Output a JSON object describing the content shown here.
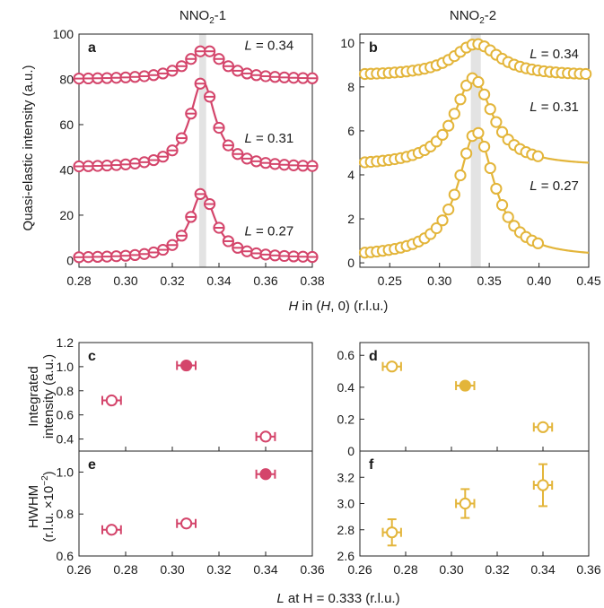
{
  "colors": {
    "red": "#d4456b",
    "gold": "#e3b53a",
    "band": "#e3e3e3",
    "axis": "#222222"
  },
  "figure": {
    "title_left": "NNO",
    "title_left_sub": "2",
    "title_left_suffix": "-1",
    "title_right": "NNO",
    "title_right_sub": "2",
    "title_right_suffix": "-2",
    "top_xlabel_pre": "H",
    "top_xlabel_post": " in (",
    "top_xlabel_H": "H",
    "top_xlabel_end": ", 0) (r.l.u.)",
    "top_ylabel": "Quasi-elastic intensity (a.u.)",
    "bottom_xlabel_L": "L",
    "bottom_xlabel_rest": " at H = 0.333 (r.l.u.)",
    "mid_ylabel_1": "Integrated",
    "mid_ylabel_2": "intensity (a.u.)",
    "bot_ylabel_1": "HWHM",
    "bot_ylabel_2": "(r.l.u. ×10",
    "bot_ylabel_sup": "−2",
    "bot_ylabel_end": ")"
  },
  "chart_data": [
    {
      "panel": "a",
      "type": "line+scatter",
      "color": "red",
      "xlim": [
        0.28,
        0.38
      ],
      "ylim": [
        -3,
        100
      ],
      "xticks": [
        "0.28",
        "0.30",
        "0.32",
        "0.34",
        "0.36",
        "0.38"
      ],
      "yticks": [
        0,
        20,
        40,
        60,
        80,
        100
      ],
      "band": [
        0.3315,
        0.3345
      ],
      "curves": [
        {
          "label_L": "L",
          "label_val": " = 0.34",
          "label_pos": [
            0.372,
            93
          ],
          "baseline": 80,
          "amp": 13,
          "center": 0.334,
          "gamma": 0.009,
          "points_x": [
            0.28,
            0.284,
            0.288,
            0.292,
            0.296,
            0.3,
            0.304,
            0.308,
            0.312,
            0.316,
            0.32,
            0.324,
            0.328,
            0.332,
            0.336,
            0.34,
            0.344,
            0.348,
            0.352,
            0.356,
            0.36,
            0.364,
            0.368,
            0.372,
            0.376,
            0.38
          ],
          "open": true
        },
        {
          "label_L": "L",
          "label_val": " = 0.31",
          "label_pos": [
            0.372,
            52
          ],
          "baseline": 41,
          "amp": 38,
          "center": 0.333,
          "gamma": 0.0065,
          "points_x": [
            0.28,
            0.284,
            0.288,
            0.292,
            0.296,
            0.3,
            0.304,
            0.308,
            0.312,
            0.316,
            0.32,
            0.324,
            0.328,
            0.332,
            0.336,
            0.34,
            0.344,
            0.348,
            0.352,
            0.356,
            0.36,
            0.364,
            0.368,
            0.372,
            0.376,
            0.38
          ],
          "open": true
        },
        {
          "label_L": "L",
          "label_val": " = 0.27",
          "label_pos": [
            0.372,
            11
          ],
          "baseline": 1,
          "amp": 29,
          "center": 0.333,
          "gamma": 0.0065,
          "points_x": [
            0.28,
            0.284,
            0.288,
            0.292,
            0.296,
            0.3,
            0.304,
            0.308,
            0.312,
            0.316,
            0.32,
            0.324,
            0.328,
            0.332,
            0.336,
            0.34,
            0.344,
            0.348,
            0.352,
            0.356,
            0.36,
            0.364,
            0.368,
            0.372,
            0.376,
            0.38
          ],
          "open": true
        }
      ]
    },
    {
      "panel": "b",
      "type": "line+scatter",
      "color": "gold",
      "xlim": [
        0.22,
        0.45
      ],
      "ylim": [
        -0.2,
        10.4
      ],
      "xticks": [
        "0.25",
        "0.30",
        "0.35",
        "0.40",
        "0.45"
      ],
      "yticks": [
        0,
        2,
        4,
        6,
        8,
        10
      ],
      "band": [
        0.3315,
        0.3415
      ],
      "curves": [
        {
          "label_L": "L",
          "label_val": " = 0.34",
          "label_pos": [
            0.44,
            9.3
          ],
          "baseline": 8.5,
          "amp": 1.45,
          "center": 0.337,
          "gamma": 0.028,
          "points_x": [
            0.225,
            0.231,
            0.237,
            0.243,
            0.249,
            0.255,
            0.261,
            0.267,
            0.273,
            0.279,
            0.285,
            0.291,
            0.297,
            0.303,
            0.309,
            0.315,
            0.321,
            0.327,
            0.333,
            0.339,
            0.345,
            0.351,
            0.357,
            0.363,
            0.369,
            0.375,
            0.381,
            0.387,
            0.393,
            0.399,
            0.405,
            0.411,
            0.417,
            0.423,
            0.429,
            0.435,
            0.441,
            0.447
          ],
          "open": true
        },
        {
          "label_L": "L",
          "label_val": " = 0.31",
          "label_pos": [
            0.44,
            6.9
          ],
          "baseline": 4.4,
          "amp": 4.0,
          "center": 0.334,
          "gamma": 0.023,
          "points_x": [
            0.225,
            0.231,
            0.237,
            0.243,
            0.249,
            0.255,
            0.261,
            0.267,
            0.273,
            0.279,
            0.285,
            0.291,
            0.297,
            0.303,
            0.309,
            0.315,
            0.321,
            0.327,
            0.333,
            0.339,
            0.345,
            0.351,
            0.357,
            0.363,
            0.369,
            0.375,
            0.381,
            0.387,
            0.393,
            0.399
          ],
          "open": true
        },
        {
          "label_L": "L",
          "label_val": " = 0.27",
          "label_pos": [
            0.44,
            3.3
          ],
          "baseline": 0.25,
          "amp": 5.7,
          "center": 0.337,
          "gamma": 0.022,
          "points_x": [
            0.225,
            0.231,
            0.237,
            0.243,
            0.249,
            0.255,
            0.261,
            0.267,
            0.273,
            0.279,
            0.285,
            0.291,
            0.297,
            0.303,
            0.309,
            0.315,
            0.321,
            0.327,
            0.333,
            0.339,
            0.345,
            0.351,
            0.357,
            0.363,
            0.369,
            0.375,
            0.381,
            0.387,
            0.393,
            0.399
          ],
          "open": true
        }
      ]
    },
    {
      "panel": "c",
      "type": "scatter",
      "color": "red",
      "xlim": [
        0.26,
        0.36
      ],
      "ylim": [
        0.3,
        1.2
      ],
      "yticks": [
        "0.4",
        "0.6",
        "0.8",
        "1.0",
        "1.2"
      ],
      "points": [
        {
          "x": 0.274,
          "y": 0.72,
          "xerr": 0.004,
          "yerr": 0.0,
          "filled": false
        },
        {
          "x": 0.306,
          "y": 1.01,
          "xerr": 0.004,
          "yerr": 0.0,
          "filled": true
        },
        {
          "x": 0.34,
          "y": 0.42,
          "xerr": 0.004,
          "yerr": 0.0,
          "filled": false
        }
      ]
    },
    {
      "panel": "d",
      "type": "scatter",
      "color": "gold",
      "xlim": [
        0.26,
        0.36
      ],
      "ylim": [
        0.0,
        0.68
      ],
      "yticks": [
        "0",
        "0.2",
        "0.4",
        "0.6"
      ],
      "points": [
        {
          "x": 0.274,
          "y": 0.53,
          "xerr": 0.004,
          "yerr": 0.0,
          "filled": false
        },
        {
          "x": 0.306,
          "y": 0.41,
          "xerr": 0.004,
          "yerr": 0.0,
          "filled": true
        },
        {
          "x": 0.34,
          "y": 0.15,
          "xerr": 0.004,
          "yerr": 0.0,
          "filled": false
        }
      ]
    },
    {
      "panel": "e",
      "type": "scatter",
      "color": "red",
      "xlim": [
        0.26,
        0.36
      ],
      "ylim": [
        0.6,
        1.1
      ],
      "xticks": [
        "0.26",
        "0.28",
        "0.30",
        "0.32",
        "0.34",
        "0.36"
      ],
      "yticks": [
        "0.6",
        "0.8",
        "1.0"
      ],
      "points": [
        {
          "x": 0.274,
          "y": 0.725,
          "xerr": 0.004,
          "yerr": 0.0,
          "filled": false
        },
        {
          "x": 0.306,
          "y": 0.755,
          "xerr": 0.004,
          "yerr": 0.0,
          "filled": false
        },
        {
          "x": 0.34,
          "y": 0.99,
          "xerr": 0.004,
          "yerr": 0.0,
          "filled": true
        }
      ]
    },
    {
      "panel": "f",
      "type": "scatter",
      "color": "gold",
      "xlim": [
        0.26,
        0.36
      ],
      "ylim": [
        2.6,
        3.4
      ],
      "xticks": [
        "0.26",
        "0.28",
        "0.30",
        "0.32",
        "0.34",
        "0.36"
      ],
      "yticks": [
        "2.6",
        "2.8",
        "3.0",
        "3.2"
      ],
      "points": [
        {
          "x": 0.274,
          "y": 2.78,
          "xerr": 0.004,
          "yerr": 0.1,
          "filled": false
        },
        {
          "x": 0.306,
          "y": 3.0,
          "xerr": 0.004,
          "yerr": 0.11,
          "filled": false
        },
        {
          "x": 0.34,
          "y": 3.14,
          "xerr": 0.004,
          "yerr": 0.16,
          "filled": false
        }
      ]
    }
  ]
}
